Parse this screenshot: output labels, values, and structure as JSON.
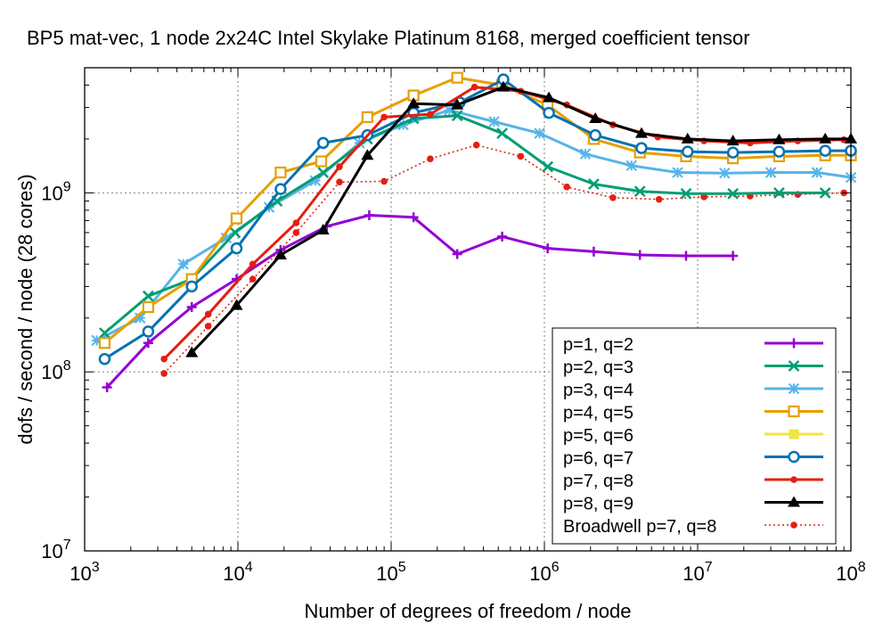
{
  "chart_data": {
    "type": "line",
    "title": "BP5 mat-vec, 1 node 2x24C Intel Skylake Platinum 8168, merged coefficient tensor",
    "xlabel": "Number of degrees of freedom / node",
    "ylabel": "dofs / second / node (28 cores)",
    "xscale": "log",
    "yscale": "log",
    "xlim": [
      1000,
      100000000
    ],
    "ylim": [
      10000000,
      5000000000
    ],
    "grid": true,
    "legend_position": "bottom-right",
    "x_ticks": [
      {
        "base": "10",
        "exp": "3",
        "value": 1000
      },
      {
        "base": "10",
        "exp": "4",
        "value": 10000
      },
      {
        "base": "10",
        "exp": "5",
        "value": 100000
      },
      {
        "base": "10",
        "exp": "6",
        "value": 1000000
      },
      {
        "base": "10",
        "exp": "7",
        "value": 10000000
      },
      {
        "base": "10",
        "exp": "8",
        "value": 100000000
      }
    ],
    "y_ticks": [
      {
        "base": "10",
        "exp": "7",
        "value": 10000000
      },
      {
        "base": "10",
        "exp": "8",
        "value": 100000000
      },
      {
        "base": "10",
        "exp": "9",
        "value": 1000000000
      }
    ],
    "series": [
      {
        "name": "p=1, q=2",
        "color": "#9400d3",
        "marker": "plus",
        "dash": false,
        "x": [
          1400,
          2600,
          5000,
          9800,
          19000,
          38000,
          72000,
          140000,
          270000,
          530000,
          1050000,
          2100000,
          4200000,
          8400000,
          17000000
        ],
        "y": [
          82000000,
          145000000,
          230000000,
          330000000,
          480000000,
          650000000,
          750000000,
          730000000,
          455000000,
          570000000,
          490000000,
          470000000,
          450000000,
          445000000,
          445000000
        ]
      },
      {
        "name": "p=2, q=3",
        "color": "#009e73",
        "marker": "cross",
        "dash": false,
        "x": [
          1350,
          2600,
          5000,
          9600,
          18000,
          36000,
          70000,
          140000,
          270000,
          530000,
          1050000,
          2100000,
          4200000,
          8400000,
          17000000,
          34000000,
          68000000
        ],
        "y": [
          165000000,
          265000000,
          330000000,
          600000000,
          900000000,
          1300000000,
          2000000000,
          2600000000,
          2700000000,
          2150000000,
          1400000000,
          1120000000,
          1020000000,
          990000000,
          990000000,
          1000000000,
          1000000000
        ]
      },
      {
        "name": "p=3, q=4",
        "color": "#56b4e9",
        "marker": "star",
        "dash": false,
        "x": [
          1200,
          2300,
          4400,
          8400,
          16000,
          32000,
          62000,
          120000,
          240000,
          470000,
          930000,
          1850000,
          3700000,
          7400000,
          15000000,
          30000000,
          60000000,
          100000000
        ],
        "y": [
          150000000,
          200000000,
          400000000,
          560000000,
          830000000,
          1170000000,
          1900000000,
          2400000000,
          2900000000,
          2500000000,
          2150000000,
          1650000000,
          1420000000,
          1300000000,
          1290000000,
          1300000000,
          1300000000,
          1220000000
        ]
      },
      {
        "name": "p=4, q=5",
        "color": "#e69f00",
        "marker": "square",
        "dash": false,
        "x": [
          1350,
          2600,
          5000,
          9800,
          19000,
          35000,
          70000,
          140000,
          270000,
          530000,
          1050000,
          2100000,
          4200000,
          8400000,
          17000000,
          34000000,
          68000000,
          100000000
        ],
        "y": [
          145000000,
          230000000,
          330000000,
          720000000,
          1300000000,
          1500000000,
          2650000000,
          3500000000,
          4400000000,
          4000000000,
          3100000000,
          2000000000,
          1680000000,
          1600000000,
          1560000000,
          1600000000,
          1620000000,
          1620000000
        ]
      },
      {
        "name": "p=5, q=6",
        "color": "#f0e442",
        "marker": "filled-square",
        "dash": false,
        "x": [],
        "y": []
      },
      {
        "name": "p=6, q=7",
        "color": "#0072b2",
        "marker": "circle",
        "dash": false,
        "x": [
          1350,
          2600,
          5000,
          9800,
          19000,
          36000,
          70000,
          140000,
          280000,
          540000,
          1070000,
          2150000,
          4300000,
          8600000,
          17000000,
          34000000,
          68000000,
          100000000
        ],
        "y": [
          118000000,
          168000000,
          300000000,
          490000000,
          1050000000,
          1900000000,
          2100000000,
          2800000000,
          3200000000,
          4300000000,
          2800000000,
          2100000000,
          1780000000,
          1700000000,
          1680000000,
          1700000000,
          1720000000,
          1720000000
        ]
      },
      {
        "name": "p=7, q=8",
        "color": "#e51e10",
        "marker": "dot",
        "dash": false,
        "x": [
          3300,
          6400,
          12500,
          24000,
          46000,
          90000,
          180000,
          350000,
          700000,
          1400000,
          2800000,
          5500000,
          11000000,
          22000000,
          45000000,
          90000000
        ],
        "y": [
          118000000,
          210000000,
          400000000,
          680000000,
          1400000000,
          2650000000,
          2750000000,
          3900000000,
          3700000000,
          3100000000,
          2400000000,
          2050000000,
          1950000000,
          1900000000,
          1950000000,
          1980000000
        ]
      },
      {
        "name": "p=8, q=9",
        "color": "#000000",
        "marker": "triangle",
        "dash": false,
        "x": [
          5000,
          9800,
          19000,
          36000,
          70000,
          140000,
          270000,
          540000,
          1070000,
          2150000,
          4300000,
          8600000,
          17000000,
          34000000,
          68000000,
          100000000
        ],
        "y": [
          128000000,
          235000000,
          450000000,
          620000000,
          1620000000,
          3150000000,
          3100000000,
          3900000000,
          3400000000,
          2600000000,
          2150000000,
          2000000000,
          1950000000,
          1980000000,
          2000000000,
          2000000000
        ]
      },
      {
        "name": "Broadwell p=7, q=8",
        "color": "#e51e10",
        "marker": "dot",
        "dash": true,
        "x": [
          3300,
          6400,
          12500,
          24000,
          46000,
          90000,
          180000,
          360000,
          700000,
          1400000,
          2800000,
          5600000,
          11000000,
          22000000,
          45000000,
          90000000
        ],
        "y": [
          98000000,
          180000000,
          330000000,
          600000000,
          1150000000,
          1160000000,
          1550000000,
          1850000000,
          1600000000,
          1080000000,
          940000000,
          920000000,
          950000000,
          960000000,
          980000000,
          1000000000
        ]
      }
    ]
  }
}
